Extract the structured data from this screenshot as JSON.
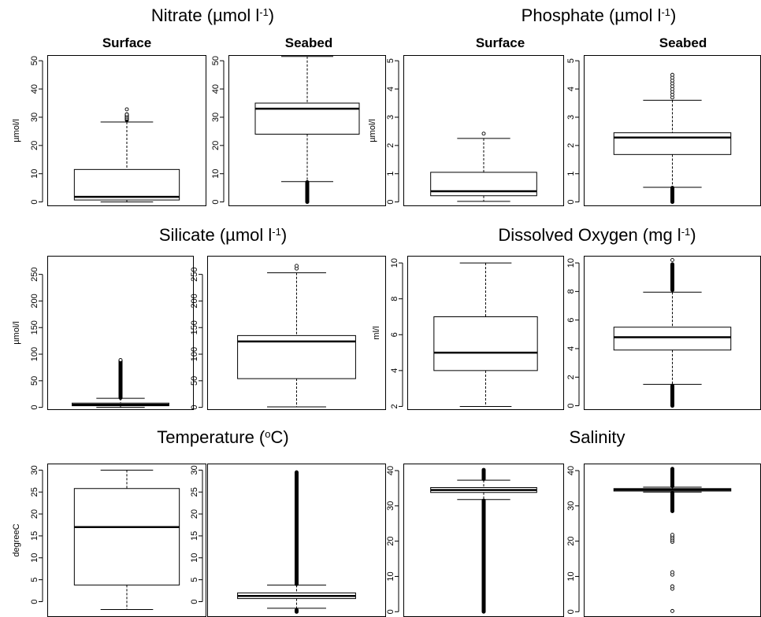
{
  "chart_data": [
    {
      "type": "box",
      "group": "Nitrate (µmol l-1)",
      "title": "Surface",
      "ylabel": "µmol/l",
      "ylim": [
        -1.5,
        52
      ],
      "yticks": [
        0,
        10,
        20,
        30,
        40,
        50
      ],
      "box": {
        "whisker_low": 0,
        "q1": 0.7,
        "median": 1.8,
        "q3": 11.5,
        "whisker_high": 28.3
      },
      "outliers": [
        29.5,
        30,
        30.5,
        31,
        32.8
      ],
      "outlier_range": [
        29,
        31
      ]
    },
    {
      "type": "box",
      "group": "Nitrate (µmol l-1)",
      "title": "Seabed",
      "ylim": [
        -1.5,
        52
      ],
      "yticks": [
        0,
        10,
        20,
        30,
        40,
        50
      ],
      "box": {
        "whisker_low": 7.2,
        "q1": 24,
        "median": 33,
        "q3": 35,
        "whisker_high": 51.5
      },
      "outliers": [],
      "outlier_range": [
        0,
        7
      ]
    },
    {
      "type": "box",
      "group": "Phosphate (µmol l-1)",
      "title": "Surface",
      "ylabel": "µmol/l",
      "ylim": [
        -0.15,
        5.2
      ],
      "yticks": [
        0,
        1,
        2,
        3,
        4,
        5
      ],
      "box": {
        "whisker_low": 0.02,
        "q1": 0.22,
        "median": 0.38,
        "q3": 1.05,
        "whisker_high": 2.25
      },
      "outliers": [
        2.42
      ],
      "outlier_range": null
    },
    {
      "type": "box",
      "group": "Phosphate (µmol l-1)",
      "title": "Seabed",
      "ylim": [
        -0.15,
        5.2
      ],
      "yticks": [
        0,
        1,
        2,
        3,
        4,
        5
      ],
      "box": {
        "whisker_low": 0.52,
        "q1": 1.68,
        "median": 2.28,
        "q3": 2.45,
        "whisker_high": 3.6
      },
      "outliers": [
        3.7,
        3.8,
        3.9,
        4.0,
        4.1,
        4.2,
        4.3,
        4.4,
        4.5
      ],
      "outlier_range": [
        0,
        0.5
      ]
    },
    {
      "type": "box",
      "group": "Silicate (µmol l-1)",
      "ylabel": "µmol/l",
      "ylim": [
        -5,
        285
      ],
      "yticks": [
        0,
        50,
        100,
        150,
        200,
        250
      ],
      "box": {
        "whisker_low": 0,
        "q1": 3,
        "median": 5,
        "q3": 8,
        "whisker_high": 17
      },
      "outliers": [
        89
      ],
      "outlier_range": [
        18,
        88
      ]
    },
    {
      "type": "box",
      "group": "Silicate (µmol l-1)",
      "ylim": [
        -5,
        285
      ],
      "yticks": [
        0,
        50,
        100,
        150,
        200,
        250
      ],
      "box": {
        "whisker_low": 1,
        "q1": 54,
        "median": 124,
        "q3": 135,
        "whisker_high": 253
      },
      "outliers": [
        261,
        266
      ],
      "outlier_range": null
    },
    {
      "type": "box",
      "group": "Dissolved Oxygen (mg l-1)",
      "ylabel": "ml/l",
      "ylim": [
        1.8,
        10.4
      ],
      "yticks": [
        2,
        4,
        6,
        8,
        10
      ],
      "box": {
        "whisker_low": 2,
        "q1": 4,
        "median": 5,
        "q3": 7,
        "whisker_high": 10
      },
      "outliers": [],
      "outlier_range": null
    },
    {
      "type": "box",
      "group": "Dissolved Oxygen (mg l-1)",
      "ylim": [
        -0.3,
        10.5
      ],
      "yticks": [
        0,
        2,
        4,
        6,
        8,
        10
      ],
      "box": {
        "whisker_low": 1.5,
        "q1": 3.9,
        "median": 4.8,
        "q3": 5.5,
        "whisker_high": 7.95
      },
      "outliers": [
        10.2
      ],
      "outlier_range_list": [
        [
          0,
          1.4
        ],
        [
          8.1,
          9.9
        ]
      ]
    },
    {
      "type": "box",
      "group": "Temperature (°C)",
      "ylabel": "degreeC",
      "ylim": [
        -3.5,
        31.5
      ],
      "yticks": [
        0,
        5,
        10,
        15,
        20,
        25,
        30
      ],
      "box": {
        "whisker_low": -1.8,
        "q1": 3.8,
        "median": 17,
        "q3": 25.8,
        "whisker_high": 30
      },
      "outliers": [],
      "outlier_range": null
    },
    {
      "type": "box",
      "group": "Temperature (°C)",
      "ylim": [
        -3.5,
        31.5
      ],
      "yticks": [
        0,
        5,
        10,
        15,
        20,
        25,
        30
      ],
      "box": {
        "whisker_low": -1.5,
        "q1": 0.7,
        "median": 1.3,
        "q3": 2.0,
        "whisker_high": 3.8
      },
      "outliers": [],
      "outlier_range_list": [
        [
          4,
          29.5
        ],
        [
          -2.3,
          -1.9
        ]
      ]
    },
    {
      "type": "box",
      "group": "Salinity",
      "ylim": [
        -1.5,
        42
      ],
      "yticks": [
        0,
        10,
        20,
        30,
        40
      ],
      "box": {
        "whisker_low": 31.8,
        "q1": 33.8,
        "median": 34.5,
        "q3": 35.2,
        "whisker_high": 37.3
      },
      "outliers": [],
      "outlier_range_list": [
        [
          0,
          31.5
        ],
        [
          37.6,
          40.2
        ]
      ]
    },
    {
      "type": "box",
      "group": "Salinity",
      "ylim": [
        -1.5,
        42
      ],
      "yticks": [
        0,
        10,
        20,
        30,
        40
      ],
      "box": {
        "whisker_low": 33.9,
        "q1": 34.2,
        "median": 34.6,
        "q3": 34.9,
        "whisker_high": 35.3
      },
      "outliers": [
        0.2,
        6.5,
        7.2,
        10.5,
        11.2,
        19.8,
        20.3,
        20.8,
        21.3,
        21.8
      ],
      "outlier_range_list": [
        [
          28.5,
          33.7
        ],
        [
          35.6,
          40.5
        ]
      ]
    }
  ],
  "group_titles": [
    {
      "base": "Nitrate (µmol l",
      "sup": "-1",
      "tail": ")"
    },
    {
      "base": "Phosphate (µmol l",
      "sup": "-1",
      "tail": ")"
    },
    {
      "base": "Silicate (µmol l",
      "sup": "-1",
      "tail": ")"
    },
    {
      "base": "Dissolved Oxygen (mg l",
      "sup": "-1",
      "tail": ")"
    },
    {
      "base": "Temperature (",
      "sup": "o",
      "tail": "C)"
    },
    {
      "base": "Salinity",
      "sup": "",
      "tail": ""
    }
  ]
}
